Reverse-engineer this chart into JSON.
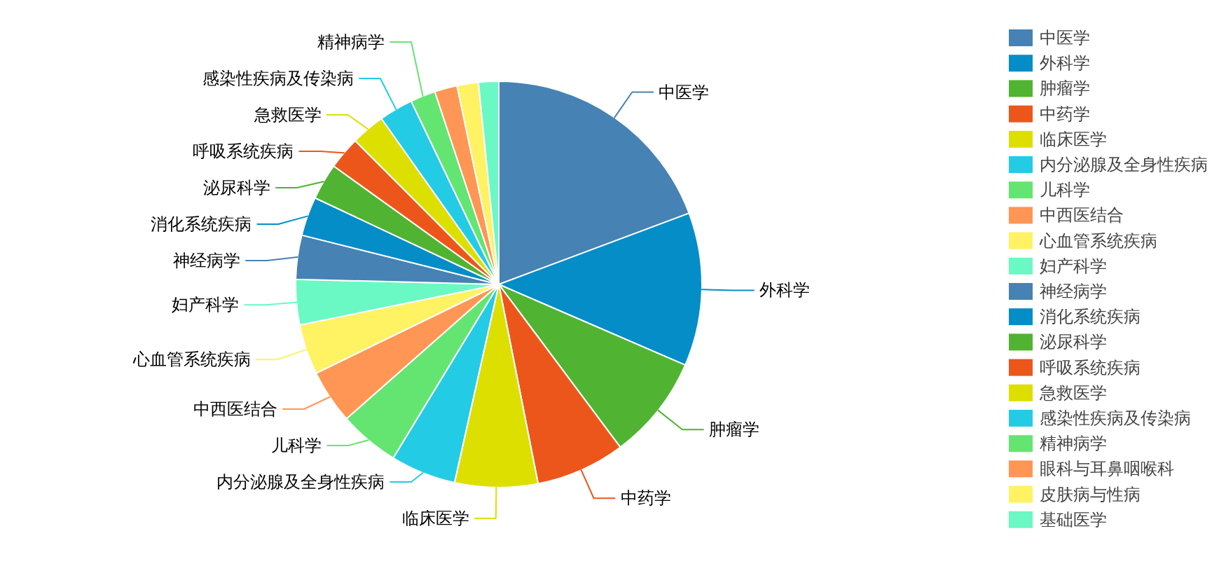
{
  "chart_data": {
    "type": "pie",
    "legend": "right",
    "categories": [
      "中医学",
      "外科学",
      "肿瘤学",
      "中药学",
      "临床医学",
      "内分泌腺及全身性疾病",
      "儿科学",
      "中西医结合",
      "心血管系统疾病",
      "妇产科学",
      "神经病学",
      "消化系统疾病",
      "泌尿科学",
      "呼吸系统疾病",
      "急救医学",
      "感染性疾病及传染病",
      "精神病学",
      "眼科与耳鼻咽喉科",
      "皮肤病与性病",
      "基础医学"
    ],
    "values": [
      19.3,
      12.2,
      8.3,
      7.1,
      6.6,
      5.2,
      4.8,
      4.3,
      4.0,
      3.6,
      3.5,
      3.1,
      2.9,
      2.6,
      2.7,
      2.7,
      2.0,
      1.8,
      1.7,
      1.6
    ],
    "colors": [
      "#4682b4",
      "#058dc7",
      "#50b432",
      "#ed561b",
      "#dddf00",
      "#24cbe5",
      "#64e572",
      "#ff9655",
      "#fff263",
      "#6af9c4",
      "#4682b4",
      "#058dc7",
      "#50b432",
      "#ed561b",
      "#dddf00",
      "#24cbe5",
      "#64e572",
      "#ff9655",
      "#fff263",
      "#6af9c4"
    ]
  }
}
